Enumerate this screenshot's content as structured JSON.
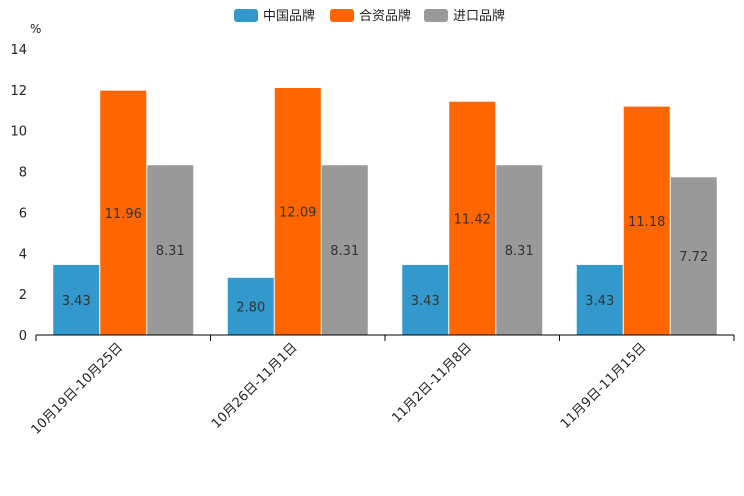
{
  "chart_data": {
    "type": "bar",
    "title": "",
    "xlabel": "",
    "ylabel": "%",
    "ylim": [
      0,
      14
    ],
    "yticks": [
      0,
      2,
      4,
      6,
      8,
      10,
      12,
      14
    ],
    "grid": false,
    "legend_position": "top-center",
    "categories": [
      "10月19日-10月25日",
      "10月26日-11月1日",
      "11月2日-11月8日",
      "11月9日-11月15日"
    ],
    "series": [
      {
        "name": "中国品牌",
        "color": "#3399cc",
        "values": [
          3.43,
          2.8,
          3.43,
          3.43
        ],
        "labels": [
          "3.43",
          "2.80",
          "3.43",
          "3.43"
        ]
      },
      {
        "name": "合资品牌",
        "color": "#ff6600",
        "values": [
          11.96,
          12.09,
          11.42,
          11.18
        ],
        "labels": [
          "11.96",
          "12.09",
          "11.42",
          "11.18"
        ]
      },
      {
        "name": "进口品牌",
        "color": "#999999",
        "values": [
          8.31,
          8.31,
          8.31,
          7.72
        ],
        "labels": [
          "8.31",
          "8.31",
          "8.31",
          "7.72"
        ]
      }
    ]
  }
}
